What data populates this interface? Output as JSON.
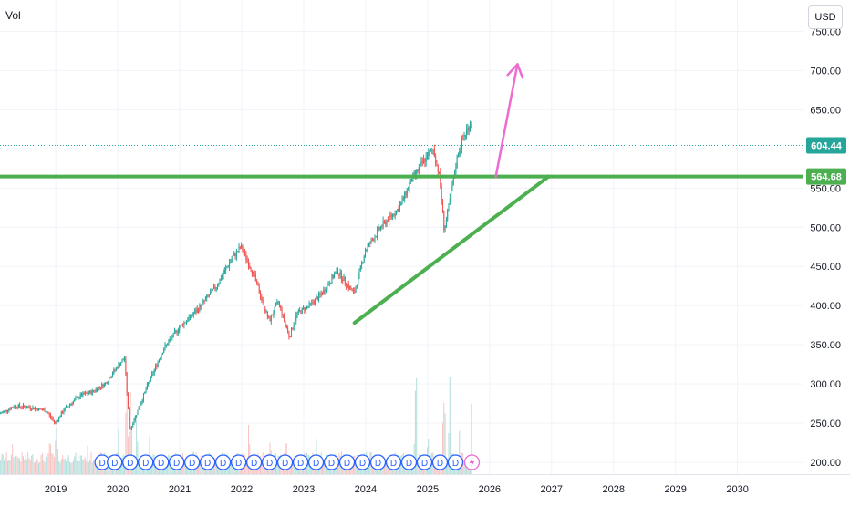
{
  "header": {
    "indicator_label": "Vol",
    "currency": "USD"
  },
  "colors": {
    "up": "#26a69a",
    "down": "#ef5350",
    "vol_up": "#b2dfdb",
    "vol_down": "#f7c4c2",
    "support_line": "#4caf50",
    "price_tag": "#26a69a",
    "arrow": "#ec6cd1",
    "dividend": "#2962ff",
    "grid": "#f0f3fa",
    "text": "#131722"
  },
  "price_tags": {
    "last": "604.44",
    "support": "564.68"
  },
  "chart_data": {
    "type": "candlestick",
    "xlabel": "",
    "ylabel": "",
    "x_ticks": [
      "2019",
      "2020",
      "2021",
      "2022",
      "2023",
      "2024",
      "2025",
      "2026",
      "2027",
      "2028",
      "2029",
      "2030"
    ],
    "y_ticks": [
      "200.00",
      "250.00",
      "300.00",
      "350.00",
      "400.00",
      "450.00",
      "500.00",
      "550.00",
      "650.00",
      "700.00",
      "750.00"
    ],
    "xlim": [
      2018.1,
      2031.05
    ],
    "ylim": [
      185,
      790
    ],
    "grid": true,
    "price_path": [
      [
        2018.1,
        262
      ],
      [
        2018.35,
        272
      ],
      [
        2018.6,
        270
      ],
      [
        2018.85,
        266
      ],
      [
        2019.0,
        250
      ],
      [
        2019.15,
        268
      ],
      [
        2019.4,
        285
      ],
      [
        2019.6,
        290
      ],
      [
        2019.8,
        300
      ],
      [
        2020.0,
        322
      ],
      [
        2020.12,
        333
      ],
      [
        2020.2,
        240
      ],
      [
        2020.3,
        260
      ],
      [
        2020.5,
        300
      ],
      [
        2020.75,
        345
      ],
      [
        2021.0,
        372
      ],
      [
        2021.3,
        395
      ],
      [
        2021.6,
        425
      ],
      [
        2021.85,
        460
      ],
      [
        2022.0,
        475
      ],
      [
        2022.2,
        440
      ],
      [
        2022.45,
        380
      ],
      [
        2022.6,
        405
      ],
      [
        2022.78,
        360
      ],
      [
        2022.9,
        390
      ],
      [
        2023.1,
        400
      ],
      [
        2023.3,
        415
      ],
      [
        2023.55,
        445
      ],
      [
        2023.7,
        428
      ],
      [
        2023.82,
        415
      ],
      [
        2024.0,
        470
      ],
      [
        2024.25,
        500
      ],
      [
        2024.55,
        525
      ],
      [
        2024.75,
        560
      ],
      [
        2024.95,
        585
      ],
      [
        2025.1,
        600
      ],
      [
        2025.2,
        565
      ],
      [
        2025.28,
        495
      ],
      [
        2025.38,
        540
      ],
      [
        2025.5,
        595
      ],
      [
        2025.62,
        620
      ],
      [
        2025.7,
        632
      ]
    ],
    "volume_scale": [
      0,
      300
    ],
    "volume_bars": [
      [
        2018.3,
        70
      ],
      [
        2018.9,
        95
      ],
      [
        2019.0,
        110
      ],
      [
        2019.5,
        60
      ],
      [
        2020.0,
        105
      ],
      [
        2020.13,
        250
      ],
      [
        2020.2,
        230
      ],
      [
        2020.3,
        140
      ],
      [
        2020.5,
        80
      ],
      [
        2021.2,
        75
      ],
      [
        2021.8,
        60
      ],
      [
        2022.1,
        110
      ],
      [
        2022.45,
        120
      ],
      [
        2022.7,
        100
      ],
      [
        2023.2,
        85
      ],
      [
        2023.6,
        70
      ],
      [
        2024.0,
        60
      ],
      [
        2024.6,
        75
      ],
      [
        2024.8,
        250
      ],
      [
        2025.0,
        110
      ],
      [
        2025.25,
        280
      ],
      [
        2025.35,
        200
      ],
      [
        2025.5,
        90
      ],
      [
        2025.7,
        150
      ]
    ],
    "dividend_markers": {
      "label": "D",
      "x": [
        2019.75,
        2019.95,
        2020.2,
        2020.45,
        2020.7,
        2020.95,
        2021.2,
        2021.45,
        2021.7,
        2021.95,
        2022.2,
        2022.45,
        2022.7,
        2022.95,
        2023.2,
        2023.45,
        2023.7,
        2023.95,
        2024.2,
        2024.45,
        2024.7,
        2024.95,
        2025.2,
        2025.45
      ]
    },
    "annotations": {
      "support_level": 564.68,
      "last_price": 604.44,
      "trendline": [
        [
          2023.82,
          378
        ],
        [
          2026.95,
          564.68
        ]
      ],
      "arrow": [
        [
          2026.1,
          564.68
        ],
        [
          2026.45,
          708
        ]
      ]
    }
  }
}
